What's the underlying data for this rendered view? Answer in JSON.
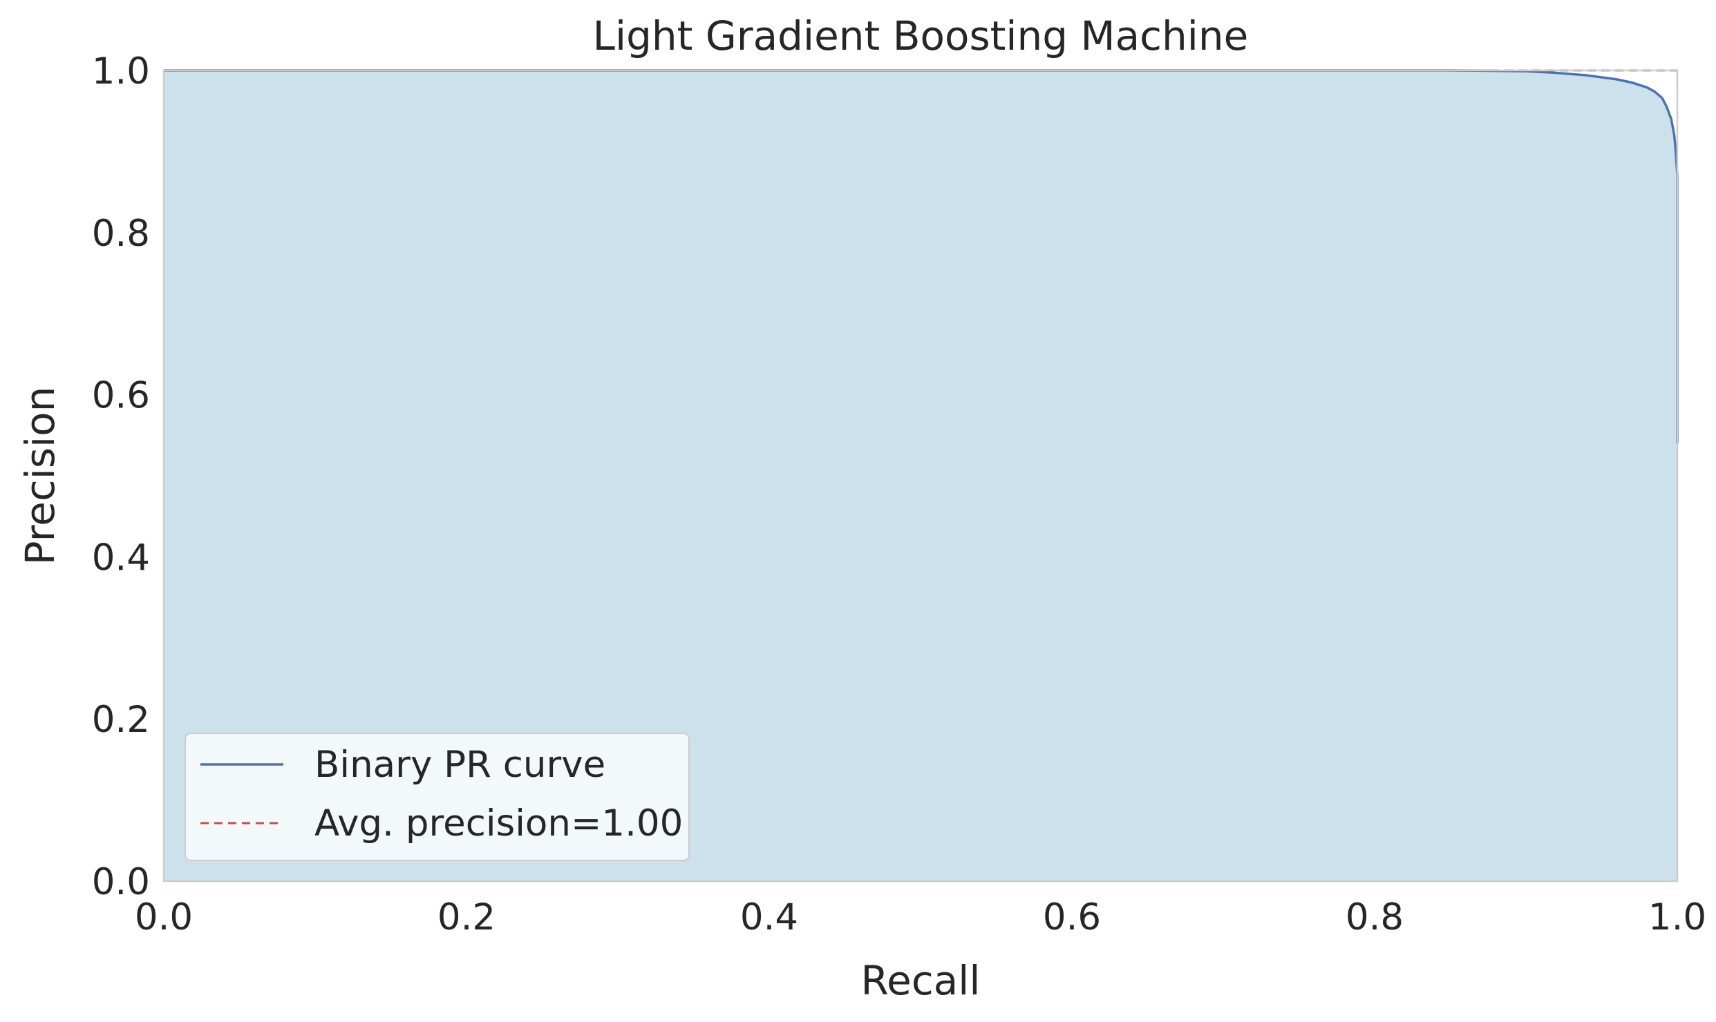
{
  "chart_data": {
    "type": "area",
    "title": "Light Gradient Boosting Machine",
    "xlabel": "Recall",
    "ylabel": "Precision",
    "xlim": [
      0.0,
      1.0
    ],
    "ylim": [
      0.0,
      1.0
    ],
    "xticks": [
      "0.0",
      "0.2",
      "0.4",
      "0.6",
      "0.8",
      "1.0"
    ],
    "yticks": [
      "0.0",
      "0.2",
      "0.4",
      "0.6",
      "0.8",
      "1.0"
    ],
    "grid": false,
    "legend_position": "lower-left",
    "series": [
      {
        "name": "Binary PR curve",
        "color": "#4c72b0",
        "fill_color": "#cce1ec",
        "style": "solid",
        "x": [
          0.0,
          0.1,
          0.3,
          0.5,
          0.7,
          0.85,
          0.88,
          0.9,
          0.92,
          0.94,
          0.96,
          0.97,
          0.98,
          0.985,
          0.99,
          0.993,
          0.996,
          0.998,
          0.999,
          1.0,
          1.0
        ],
        "y": [
          1.0,
          1.0,
          1.0,
          1.0,
          1.0,
          1.0,
          0.9995,
          0.999,
          0.997,
          0.994,
          0.989,
          0.985,
          0.979,
          0.974,
          0.966,
          0.955,
          0.94,
          0.92,
          0.9,
          0.87,
          0.54
        ]
      },
      {
        "name": "Avg. precision=1.00",
        "color": "#c44e52",
        "style": "dashed",
        "x": [
          0.0,
          1.0
        ],
        "y": [
          1.0,
          1.0
        ]
      }
    ]
  }
}
